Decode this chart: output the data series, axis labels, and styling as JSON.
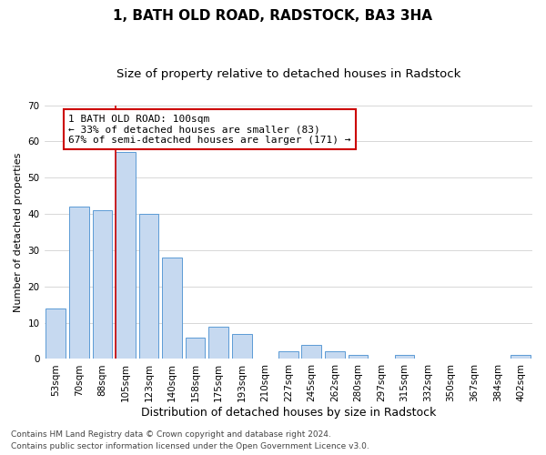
{
  "title": "1, BATH OLD ROAD, RADSTOCK, BA3 3HA",
  "subtitle": "Size of property relative to detached houses in Radstock",
  "xlabel": "Distribution of detached houses by size in Radstock",
  "ylabel": "Number of detached properties",
  "bar_labels": [
    "53sqm",
    "70sqm",
    "88sqm",
    "105sqm",
    "123sqm",
    "140sqm",
    "158sqm",
    "175sqm",
    "193sqm",
    "210sqm",
    "227sqm",
    "245sqm",
    "262sqm",
    "280sqm",
    "297sqm",
    "315sqm",
    "332sqm",
    "350sqm",
    "367sqm",
    "384sqm",
    "402sqm"
  ],
  "bar_values": [
    14,
    42,
    41,
    57,
    40,
    28,
    6,
    9,
    7,
    0,
    2,
    4,
    2,
    1,
    0,
    1,
    0,
    0,
    0,
    0,
    1
  ],
  "bar_color": "#c6d9f0",
  "bar_edge_color": "#5b9bd5",
  "grid_color": "#c8c8c8",
  "vline_color": "#cc0000",
  "annotation_text": "1 BATH OLD ROAD: 100sqm\n← 33% of detached houses are smaller (83)\n67% of semi-detached houses are larger (171) →",
  "annotation_box_color": "#ffffff",
  "annotation_box_edge_color": "#cc0000",
  "ylim": [
    0,
    70
  ],
  "yticks": [
    0,
    10,
    20,
    30,
    40,
    50,
    60,
    70
  ],
  "footnote1": "Contains HM Land Registry data © Crown copyright and database right 2024.",
  "footnote2": "Contains public sector information licensed under the Open Government Licence v3.0.",
  "title_fontsize": 11,
  "subtitle_fontsize": 9.5,
  "xlabel_fontsize": 9,
  "ylabel_fontsize": 8,
  "tick_fontsize": 7.5,
  "annotation_fontsize": 8,
  "footnote_fontsize": 6.5
}
